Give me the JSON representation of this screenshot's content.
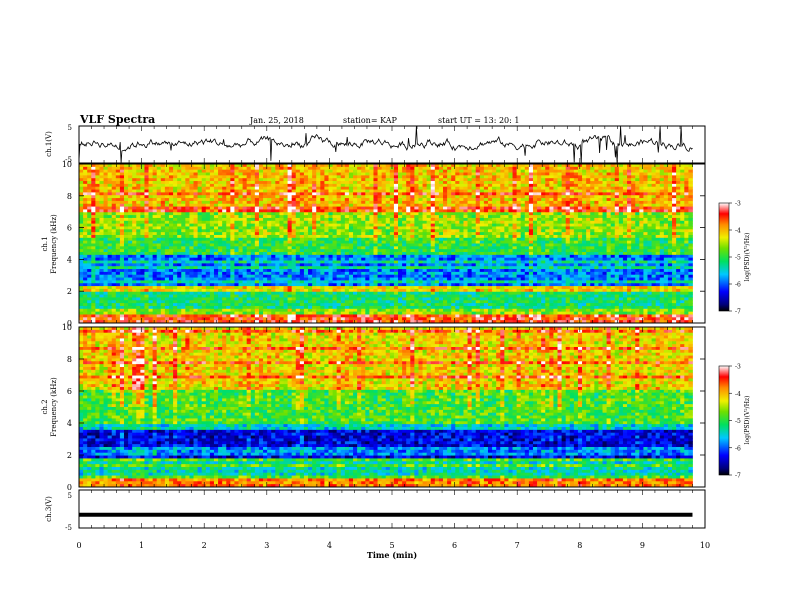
{
  "header": {
    "title": "VLF Spectra",
    "date": "Jan. 25, 2018",
    "station": "station= KAP",
    "start": "start UT =  13: 20: 1"
  },
  "chart_data": [
    {
      "type": "line",
      "panel": "ch1-waveform",
      "ylabel": "ch.1(V)",
      "ylim": [
        -5,
        5
      ],
      "xlim": [
        0,
        10
      ],
      "yticks": [
        "5",
        "-5"
      ],
      "description_values": "noisy waveform oscillating roughly between -2 and +3 V across 0–9.8 min",
      "series_color": "#000000"
    },
    {
      "type": "heatmap",
      "panel": "ch1-spectrogram",
      "ylabel": "ch.1\nFrequency (kHz)",
      "ylim": [
        0,
        10
      ],
      "xlim": [
        0,
        10
      ],
      "yticks": [
        "0",
        "2",
        "4",
        "6",
        "8",
        "10"
      ],
      "data_xrange": [
        0,
        9.8
      ],
      "colorbar": {
        "label": "log(PSD)(V²/Hz)",
        "range": [
          -7,
          -3
        ],
        "ticks": [
          "-3",
          "-4",
          "-5",
          "-6",
          "-7"
        ]
      },
      "bands_khz": [
        {
          "range": [
            0,
            0.5
          ],
          "level": -3.5
        },
        {
          "range": [
            0.5,
            2.0
          ],
          "level": -5.2
        },
        {
          "range": [
            2.0,
            2.4
          ],
          "level": -4.2
        },
        {
          "range": [
            2.4,
            4.2
          ],
          "level": -5.9
        },
        {
          "range": [
            4.2,
            5.3
          ],
          "level": -5.0
        },
        {
          "range": [
            5.3,
            7.0
          ],
          "level": -4.6
        },
        {
          "range": [
            7.0,
            10.0
          ],
          "level": -4.1
        }
      ]
    },
    {
      "type": "heatmap",
      "panel": "ch2-spectrogram",
      "ylabel": "ch.2\nFrequency (kHz)",
      "ylim": [
        0,
        10
      ],
      "xlim": [
        0,
        10
      ],
      "yticks": [
        "0",
        "2",
        "4",
        "6",
        "8",
        "10"
      ],
      "data_xrange": [
        0,
        9.8
      ],
      "colorbar": {
        "label": "log(PSD)(V²/Hz)",
        "range": [
          -7,
          -3
        ],
        "ticks": [
          "-3",
          "-4",
          "-5",
          "-6",
          "-7"
        ]
      },
      "bands_khz": [
        {
          "range": [
            0,
            0.5
          ],
          "level": -3.8
        },
        {
          "range": [
            0.5,
            1.8
          ],
          "level": -5.4
        },
        {
          "range": [
            1.8,
            3.5
          ],
          "level": -6.4
        },
        {
          "range": [
            3.5,
            4.0
          ],
          "level": -5.5
        },
        {
          "range": [
            4.0,
            6.0
          ],
          "level": -4.9
        },
        {
          "range": [
            6.0,
            10.0
          ],
          "level": -4.2
        }
      ]
    },
    {
      "type": "line",
      "panel": "ch3-waveform",
      "ylabel": "ch.3(V)",
      "ylim": [
        -5,
        5
      ],
      "xlim": [
        0,
        10
      ],
      "yticks": [
        "5",
        "-5"
      ],
      "xlabel": "Time (min)",
      "xticks": [
        "0",
        "1",
        "2",
        "3",
        "4",
        "5",
        "6",
        "7",
        "8",
        "9",
        "10"
      ],
      "values": [
        [
          0,
          -1.5
        ],
        [
          9.8,
          -1.5
        ]
      ],
      "series_color": "#000000"
    }
  ]
}
